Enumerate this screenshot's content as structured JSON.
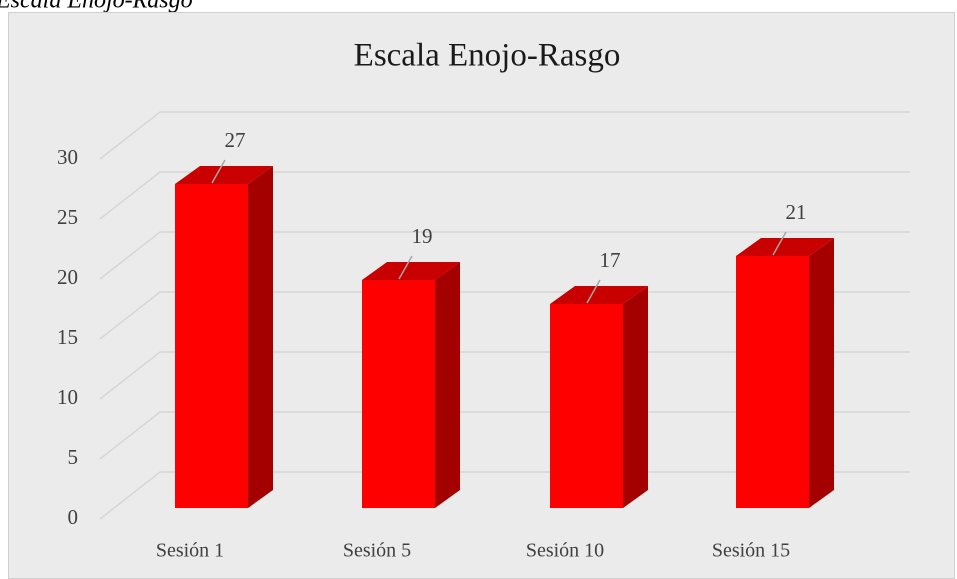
{
  "caption": "Escala Enojo-Rasgo",
  "chart_data": {
    "type": "bar3d",
    "title": "Escala Enojo-Rasgo",
    "categories": [
      "Sesión 1",
      "Sesión 5",
      "Sesión 10",
      "Sesión 15"
    ],
    "values": [
      27,
      19,
      17,
      21
    ],
    "color": "#ff0000",
    "ylim": [
      0,
      30
    ],
    "yticks": [
      0,
      5,
      10,
      15,
      20,
      25,
      30
    ],
    "grid": true
  }
}
